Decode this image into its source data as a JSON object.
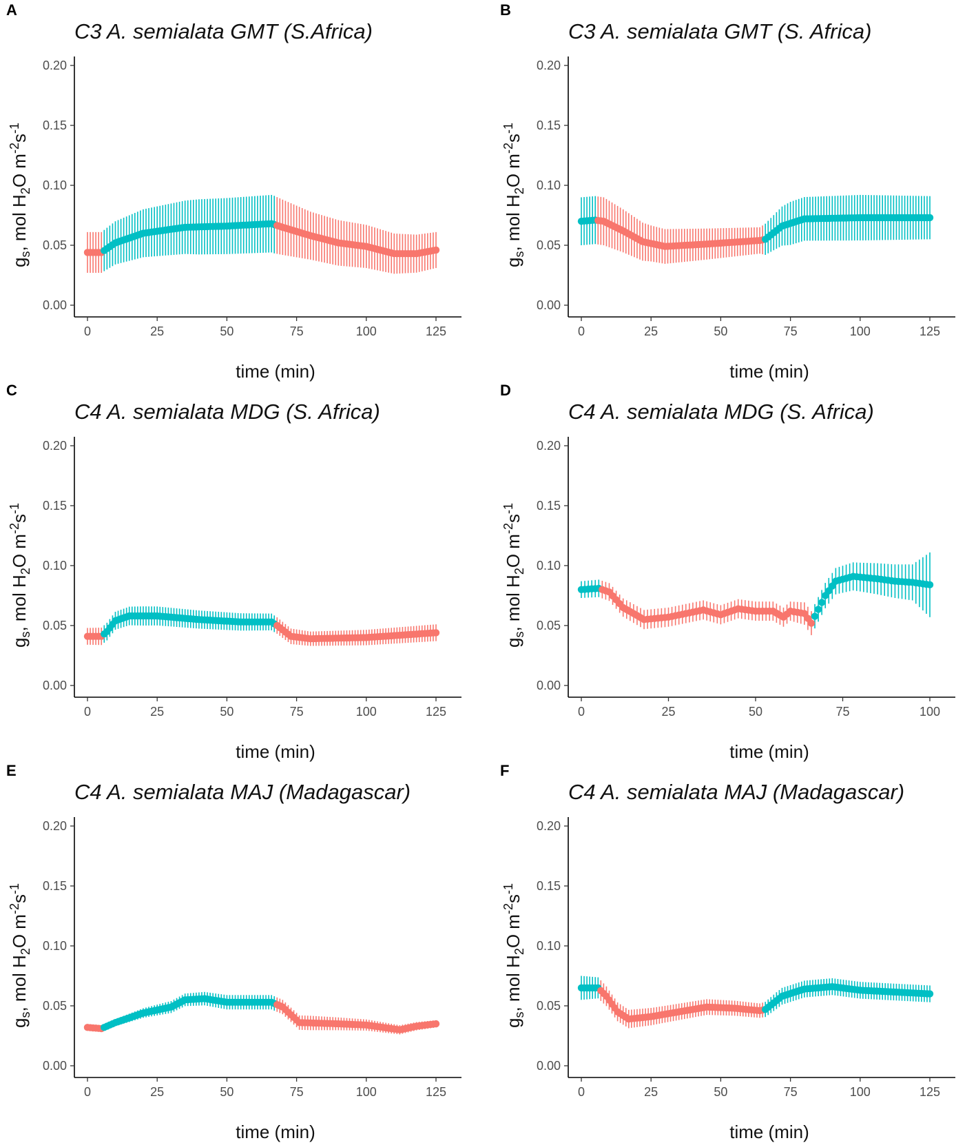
{
  "figure": {
    "colors": {
      "treatment_a": "#F8766D",
      "treatment_b": "#00BFC4"
    },
    "y_axis_label": {
      "prefix": "g",
      "sub_s": "s",
      "middle": ", mol H",
      "sub_2": "2",
      "rest": "O m",
      "sup_m2": "-2",
      "s_letter": "s",
      "sup_m1": "-1"
    },
    "x_axis_label": "time (min)",
    "y_tick_labels": [
      "0.00",
      "0.05",
      "0.10",
      "0.15",
      "0.20"
    ]
  },
  "chart_data": [
    {
      "panel": "A",
      "type": "line",
      "title": "C3 A. semialata GMT (S.Africa)",
      "xlabel": "time (min)",
      "ylabel": "gs, mol H2O m-2s-1",
      "xlim": [
        0,
        125
      ],
      "ylim": [
        0,
        0.2
      ],
      "x_ticks": [
        0,
        25,
        50,
        75,
        100,
        125
      ],
      "x_tick_labels": [
        "0",
        "25",
        "50",
        "75",
        "100",
        "125"
      ],
      "y_ticks": [
        0,
        0.05,
        0.1,
        0.15,
        0.2
      ],
      "phases": [
        {
          "color": "#F8766D",
          "end": 5
        },
        {
          "color": "#00BFC4",
          "end": 67
        },
        {
          "color": "#F8766D",
          "end": 125
        }
      ],
      "mean_knots": [
        [
          0,
          0.044
        ],
        [
          5,
          0.044
        ],
        [
          10,
          0.052
        ],
        [
          20,
          0.06
        ],
        [
          35,
          0.065
        ],
        [
          50,
          0.066
        ],
        [
          66,
          0.068
        ],
        [
          70,
          0.065
        ],
        [
          80,
          0.058
        ],
        [
          90,
          0.052
        ],
        [
          100,
          0.049
        ],
        [
          110,
          0.043
        ],
        [
          118,
          0.043
        ],
        [
          125,
          0.046
        ]
      ],
      "err_knots": [
        [
          0,
          0.017
        ],
        [
          5,
          0.017
        ],
        [
          20,
          0.02
        ],
        [
          40,
          0.023
        ],
        [
          66,
          0.024
        ],
        [
          67,
          0.024
        ],
        [
          80,
          0.02
        ],
        [
          100,
          0.018
        ],
        [
          125,
          0.015
        ]
      ],
      "error_bar_step": 1
    },
    {
      "panel": "B",
      "type": "line",
      "title": "C3 A. semialata GMT (S. Africa)",
      "xlabel": "time (min)",
      "ylabel": "gs, mol H2O m-2s-1",
      "xlim": [
        0,
        125
      ],
      "ylim": [
        0,
        0.2
      ],
      "x_ticks": [
        0,
        25,
        50,
        75,
        100,
        125
      ],
      "x_tick_labels": [
        "0",
        "25",
        "50",
        "75",
        "100",
        "125"
      ],
      "y_ticks": [
        0,
        0.05,
        0.1,
        0.15,
        0.2
      ],
      "phases": [
        {
          "color": "#00BFC4",
          "end": 5
        },
        {
          "color": "#F8766D",
          "end": 65
        },
        {
          "color": "#00BFC4",
          "end": 125
        }
      ],
      "mean_knots": [
        [
          0,
          0.07
        ],
        [
          5,
          0.071
        ],
        [
          8,
          0.07
        ],
        [
          15,
          0.062
        ],
        [
          22,
          0.053
        ],
        [
          30,
          0.049
        ],
        [
          45,
          0.051
        ],
        [
          64,
          0.054
        ],
        [
          66,
          0.055
        ],
        [
          72,
          0.066
        ],
        [
          80,
          0.072
        ],
        [
          100,
          0.073
        ],
        [
          125,
          0.073
        ]
      ],
      "err_knots": [
        [
          0,
          0.02
        ],
        [
          8,
          0.02
        ],
        [
          25,
          0.015
        ],
        [
          64,
          0.011
        ],
        [
          66,
          0.013
        ],
        [
          75,
          0.018
        ],
        [
          100,
          0.019
        ],
        [
          125,
          0.018
        ]
      ],
      "error_bar_step": 1
    },
    {
      "panel": "C",
      "type": "line",
      "title": "C4 A. semialata MDG (S. Africa)",
      "xlabel": "time (min)",
      "ylabel": "gs, mol H2O m-2s-1",
      "xlim": [
        0,
        125
      ],
      "ylim": [
        0,
        0.2
      ],
      "x_ticks": [
        0,
        25,
        50,
        75,
        100,
        125
      ],
      "x_tick_labels": [
        "0",
        "25",
        "50",
        "75",
        "100",
        "125"
      ],
      "y_ticks": [
        0,
        0.05,
        0.1,
        0.15,
        0.2
      ],
      "phases": [
        {
          "color": "#F8766D",
          "end": 5
        },
        {
          "color": "#00BFC4",
          "end": 67
        },
        {
          "color": "#F8766D",
          "end": 125
        }
      ],
      "mean_knots": [
        [
          0,
          0.041
        ],
        [
          5,
          0.041
        ],
        [
          7,
          0.045
        ],
        [
          10,
          0.054
        ],
        [
          15,
          0.058
        ],
        [
          25,
          0.058
        ],
        [
          40,
          0.055
        ],
        [
          55,
          0.053
        ],
        [
          66,
          0.053
        ],
        [
          68,
          0.05
        ],
        [
          73,
          0.041
        ],
        [
          80,
          0.039
        ],
        [
          100,
          0.04
        ],
        [
          125,
          0.044
        ]
      ],
      "err_knots": [
        [
          0,
          0.007
        ],
        [
          20,
          0.008
        ],
        [
          66,
          0.007
        ],
        [
          80,
          0.006
        ],
        [
          125,
          0.007
        ]
      ],
      "error_bar_step": 1
    },
    {
      "panel": "D",
      "type": "line",
      "title": "C4 A. semialata MDG (S. Africa)",
      "xlabel": "time (min)",
      "ylabel": "gs, mol H2O m-2s-1",
      "xlim": [
        0,
        100
      ],
      "ylim": [
        0,
        0.2
      ],
      "x_ticks": [
        0,
        25,
        50,
        75,
        100
      ],
      "x_tick_labels": [
        "0",
        "25",
        "50",
        "75",
        "100"
      ],
      "y_ticks": [
        0,
        0.05,
        0.1,
        0.15,
        0.2
      ],
      "phases": [
        {
          "color": "#00BFC4",
          "end": 5
        },
        {
          "color": "#F8766D",
          "end": 66
        },
        {
          "color": "#00BFC4",
          "end": 100
        }
      ],
      "mean_knots": [
        [
          0,
          0.08
        ],
        [
          5,
          0.081
        ],
        [
          8,
          0.078
        ],
        [
          12,
          0.065
        ],
        [
          18,
          0.055
        ],
        [
          25,
          0.057
        ],
        [
          30,
          0.06
        ],
        [
          35,
          0.063
        ],
        [
          40,
          0.059
        ],
        [
          45,
          0.064
        ],
        [
          50,
          0.062
        ],
        [
          55,
          0.062
        ],
        [
          58,
          0.057
        ],
        [
          60,
          0.062
        ],
        [
          64,
          0.06
        ],
        [
          66,
          0.052
        ],
        [
          70,
          0.075
        ],
        [
          73,
          0.087
        ],
        [
          78,
          0.091
        ],
        [
          85,
          0.089
        ],
        [
          90,
          0.087
        ],
        [
          95,
          0.086
        ],
        [
          100,
          0.084
        ]
      ],
      "err_knots": [
        [
          0,
          0.007
        ],
        [
          18,
          0.008
        ],
        [
          60,
          0.008
        ],
        [
          66,
          0.01
        ],
        [
          80,
          0.012
        ],
        [
          95,
          0.015
        ],
        [
          100,
          0.027
        ]
      ],
      "error_bar_step": 1
    },
    {
      "panel": "E",
      "type": "line",
      "title": "C4 A. semialata MAJ (Madagascar)",
      "xlabel": "time (min)",
      "ylabel": "gs, mol H2O m-2s-1",
      "xlim": [
        0,
        125
      ],
      "ylim": [
        0,
        0.2
      ],
      "x_ticks": [
        0,
        25,
        50,
        75,
        100,
        125
      ],
      "x_tick_labels": [
        "0",
        "25",
        "50",
        "75",
        "100",
        "125"
      ],
      "y_ticks": [
        0,
        0.05,
        0.1,
        0.15,
        0.2
      ],
      "phases": [
        {
          "color": "#F8766D",
          "end": 5
        },
        {
          "color": "#00BFC4",
          "end": 67
        },
        {
          "color": "#F8766D",
          "end": 125
        }
      ],
      "mean_knots": [
        [
          0,
          0.032
        ],
        [
          5,
          0.031
        ],
        [
          10,
          0.036
        ],
        [
          20,
          0.044
        ],
        [
          30,
          0.049
        ],
        [
          35,
          0.055
        ],
        [
          42,
          0.056
        ],
        [
          50,
          0.053
        ],
        [
          60,
          0.053
        ],
        [
          66,
          0.053
        ],
        [
          70,
          0.049
        ],
        [
          76,
          0.036
        ],
        [
          90,
          0.035
        ],
        [
          100,
          0.034
        ],
        [
          112,
          0.03
        ],
        [
          118,
          0.033
        ],
        [
          125,
          0.035
        ]
      ],
      "err_knots": [
        [
          0,
          0.002
        ],
        [
          10,
          0.003
        ],
        [
          30,
          0.005
        ],
        [
          50,
          0.006
        ],
        [
          66,
          0.006
        ],
        [
          80,
          0.006
        ],
        [
          110,
          0.004
        ],
        [
          125,
          0.003
        ]
      ],
      "error_bar_step": 1
    },
    {
      "panel": "F",
      "type": "line",
      "title": "C4 A. semialata MAJ (Madagascar)",
      "xlabel": "time (min)",
      "ylabel": "gs, mol H2O m-2s-1",
      "xlim": [
        0,
        125
      ],
      "ylim": [
        0,
        0.2
      ],
      "x_ticks": [
        0,
        25,
        50,
        75,
        100,
        125
      ],
      "x_tick_labels": [
        "0",
        "25",
        "50",
        "75",
        "100",
        "125"
      ],
      "y_ticks": [
        0,
        0.05,
        0.1,
        0.15,
        0.2
      ],
      "phases": [
        {
          "color": "#00BFC4",
          "end": 6
        },
        {
          "color": "#F8766D",
          "end": 65
        },
        {
          "color": "#00BFC4",
          "end": 125
        }
      ],
      "mean_knots": [
        [
          0,
          0.065
        ],
        [
          6,
          0.065
        ],
        [
          9,
          0.058
        ],
        [
          13,
          0.045
        ],
        [
          17,
          0.039
        ],
        [
          25,
          0.041
        ],
        [
          35,
          0.045
        ],
        [
          45,
          0.049
        ],
        [
          55,
          0.048
        ],
        [
          64,
          0.046
        ],
        [
          66,
          0.047
        ],
        [
          72,
          0.058
        ],
        [
          80,
          0.064
        ],
        [
          90,
          0.066
        ],
        [
          100,
          0.063
        ],
        [
          125,
          0.06
        ]
      ],
      "err_knots": [
        [
          0,
          0.01
        ],
        [
          10,
          0.008
        ],
        [
          30,
          0.007
        ],
        [
          64,
          0.006
        ],
        [
          70,
          0.007
        ],
        [
          90,
          0.007
        ],
        [
          125,
          0.007
        ]
      ],
      "error_bar_step": 1
    }
  ]
}
